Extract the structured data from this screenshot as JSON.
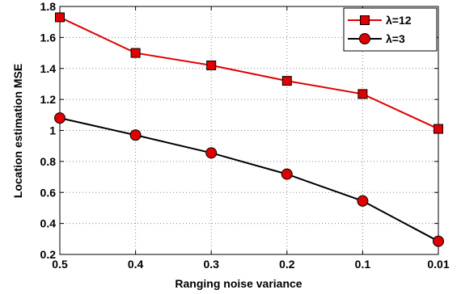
{
  "chart_data": {
    "type": "line",
    "title": "",
    "xlabel": "Ranging noise variance",
    "ylabel": "Location estimation MSE",
    "categories": [
      "0.5",
      "0.4",
      "0.3",
      "0.2",
      "0.1",
      "0.01"
    ],
    "ylim": [
      0.2,
      1.8
    ],
    "yticks": [
      "0.2",
      "0.4",
      "0.6",
      "0.8",
      "1",
      "1.2",
      "1.4",
      "1.6",
      "1.8"
    ],
    "grid": true,
    "legend_position": "top-right",
    "series": [
      {
        "name": "λ=12",
        "color": "#e00000",
        "marker": "square",
        "values": [
          1.73,
          1.5,
          1.42,
          1.32,
          1.235,
          1.01
        ]
      },
      {
        "name": "λ=3",
        "color": "#000000",
        "marker": "circle",
        "values": [
          1.08,
          0.97,
          0.855,
          0.718,
          0.545,
          0.285
        ]
      }
    ]
  }
}
